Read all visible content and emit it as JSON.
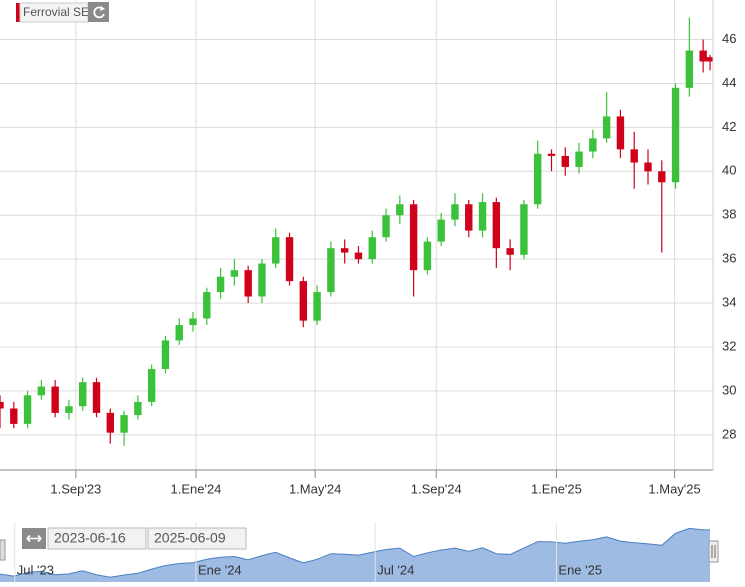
{
  "chart_data": {
    "type": "candlestick",
    "title": "Ferrovial SE",
    "x": [
      "2023-06-16",
      "2023-06-30",
      "2023-07-14",
      "2023-07-28",
      "2023-08-11",
      "2023-08-25",
      "2023-09-08",
      "2023-09-22",
      "2023-10-06",
      "2023-10-20",
      "2023-11-03",
      "2023-11-17",
      "2023-12-01",
      "2023-12-15",
      "2023-12-29",
      "2024-01-12",
      "2024-01-26",
      "2024-02-09",
      "2024-02-23",
      "2024-03-08",
      "2024-03-22",
      "2024-04-05",
      "2024-04-19",
      "2024-05-03",
      "2024-05-17",
      "2024-05-31",
      "2024-06-14",
      "2024-06-28",
      "2024-07-12",
      "2024-07-26",
      "2024-08-09",
      "2024-08-23",
      "2024-09-06",
      "2024-09-20",
      "2024-10-04",
      "2024-10-18",
      "2024-11-01",
      "2024-11-15",
      "2024-11-29",
      "2024-12-13",
      "2024-12-27",
      "2025-01-10",
      "2025-01-24",
      "2025-02-07",
      "2025-02-21",
      "2025-03-07",
      "2025-03-21",
      "2025-04-04",
      "2025-04-18",
      "2025-05-02",
      "2025-05-16",
      "2025-05-30",
      "2025-06-06"
    ],
    "open": [
      29.5,
      29.2,
      28.5,
      29.8,
      30.2,
      29.0,
      29.3,
      30.4,
      29.0,
      28.1,
      28.9,
      29.5,
      31.0,
      32.3,
      33.0,
      33.3,
      34.5,
      35.2,
      35.5,
      34.3,
      35.8,
      37.0,
      35.0,
      33.2,
      34.5,
      36.5,
      36.3,
      36.0,
      37.0,
      38.0,
      38.5,
      35.5,
      36.8,
      37.8,
      38.5,
      37.3,
      38.6,
      36.5,
      36.2,
      38.5,
      40.8,
      40.7,
      40.2,
      40.9,
      41.5,
      42.5,
      41.0,
      40.4,
      40.0,
      39.5,
      43.8,
      45.5,
      45.2
    ],
    "high": [
      29.8,
      29.5,
      30.0,
      30.5,
      30.5,
      29.6,
      30.6,
      30.6,
      29.2,
      29.1,
      29.8,
      31.2,
      32.5,
      33.3,
      33.6,
      34.7,
      35.6,
      36.0,
      35.7,
      36.0,
      37.4,
      37.2,
      35.2,
      34.8,
      36.8,
      36.9,
      36.6,
      37.3,
      38.3,
      38.9,
      38.7,
      37.0,
      38.1,
      39.0,
      38.7,
      39.0,
      38.8,
      36.9,
      38.7,
      41.4,
      41.0,
      41.1,
      41.3,
      41.9,
      43.6,
      42.8,
      41.8,
      41.0,
      40.5,
      44.0,
      47.0,
      46.0,
      45.3
    ],
    "low": [
      28.3,
      28.3,
      28.3,
      29.6,
      28.8,
      28.7,
      29.1,
      28.8,
      27.6,
      27.5,
      28.7,
      29.3,
      30.8,
      32.1,
      32.7,
      33.0,
      34.2,
      34.8,
      34.0,
      34.0,
      35.6,
      34.8,
      32.9,
      33.0,
      34.3,
      35.8,
      35.8,
      35.8,
      36.8,
      37.6,
      34.3,
      35.3,
      36.6,
      37.5,
      37.0,
      37.0,
      35.6,
      35.5,
      36.0,
      38.3,
      40.0,
      39.8,
      39.9,
      40.6,
      41.3,
      40.6,
      39.2,
      39.4,
      36.3,
      39.2,
      43.4,
      44.5,
      44.6
    ],
    "close": [
      29.2,
      28.5,
      29.8,
      30.2,
      29.0,
      29.3,
      30.4,
      29.0,
      28.1,
      28.9,
      29.5,
      31.0,
      32.3,
      33.0,
      33.3,
      34.5,
      35.2,
      35.5,
      34.3,
      35.8,
      37.0,
      35.0,
      33.2,
      34.5,
      36.5,
      36.3,
      36.0,
      37.0,
      38.0,
      38.5,
      35.5,
      36.8,
      37.8,
      38.5,
      37.3,
      38.6,
      36.5,
      36.2,
      38.5,
      40.8,
      40.7,
      40.2,
      40.9,
      41.5,
      42.5,
      41.0,
      40.4,
      40.0,
      39.5,
      43.8,
      45.5,
      45.0,
      45.0
    ],
    "up_color": "#3cc13b",
    "down_color": "#d0021b",
    "xlim": [
      "2023-06-16",
      "2025-06-09"
    ],
    "xticks": [
      {
        "value": "2023-09-01",
        "label": "1.Sep'23"
      },
      {
        "value": "2024-01-01",
        "label": "1.Ene'24"
      },
      {
        "value": "2024-05-01",
        "label": "1.May'24"
      },
      {
        "value": "2024-09-01",
        "label": "1.Sep'24"
      },
      {
        "value": "2025-01-01",
        "label": "1.Ene'25"
      },
      {
        "value": "2025-05-01",
        "label": "1.May'25"
      }
    ],
    "ylim": [
      26.4,
      47.8
    ],
    "yticks": [
      28,
      30,
      32,
      34,
      36,
      38,
      40,
      42,
      44,
      46
    ],
    "grid": true,
    "navigator": {
      "color": "#9dbbe3",
      "line_color": "#4a7fc1",
      "xticks": [
        {
          "value": "2023-07-01",
          "label": "Jul '23"
        },
        {
          "value": "2024-01-01",
          "label": "Ene '24"
        },
        {
          "value": "2024-07-01",
          "label": "Jul '24"
        },
        {
          "value": "2025-01-01",
          "label": "Ene '25"
        }
      ]
    }
  }
}
